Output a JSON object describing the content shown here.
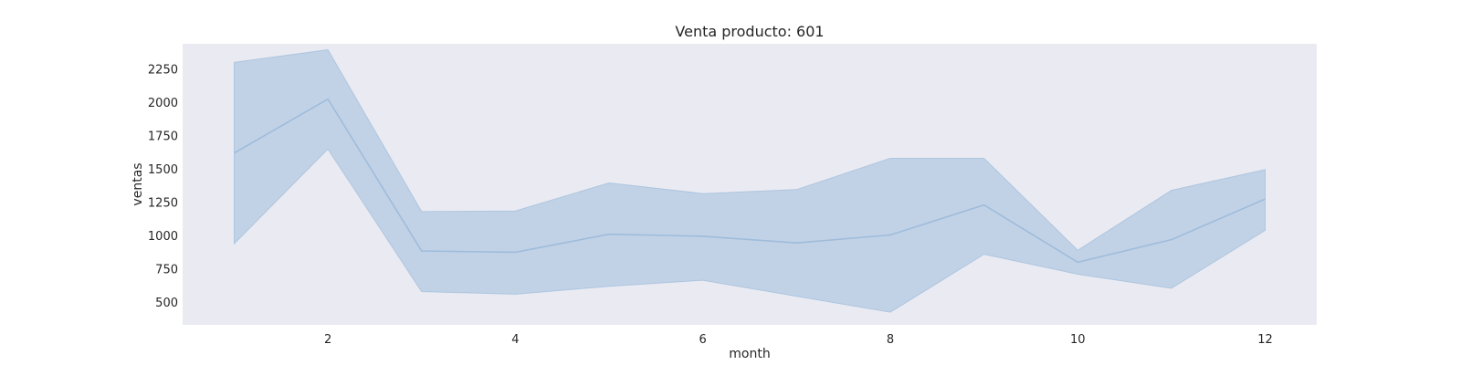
{
  "chart_data": {
    "type": "line",
    "title": "Venta producto: 601",
    "xlabel": "month",
    "ylabel": "ventas",
    "xlim": [
      0.45,
      12.55
    ],
    "ylim": [
      330,
      2440
    ],
    "xticks": [
      2,
      4,
      6,
      8,
      10,
      12
    ],
    "yticks": [
      500,
      750,
      1000,
      1250,
      1500,
      1750,
      2000,
      2250
    ],
    "grid": false,
    "x": [
      1,
      2,
      3,
      4,
      5,
      6,
      7,
      8,
      9,
      10,
      11,
      12
    ],
    "series": [
      {
        "values": [
          1620,
          2025,
          885,
          875,
          1010,
          995,
          945,
          1005,
          1230,
          800,
          970,
          1275
        ],
        "lower": [
          940,
          1650,
          580,
          560,
          620,
          665,
          545,
          425,
          860,
          710,
          605,
          1040
        ],
        "upper": [
          2300,
          2395,
          1180,
          1185,
          1395,
          1315,
          1345,
          1580,
          1580,
          890,
          1340,
          1495
        ]
      }
    ],
    "colors": {
      "background": "#eaeaf2",
      "line": "#9ebcdb",
      "band": "#a9c3de"
    }
  }
}
